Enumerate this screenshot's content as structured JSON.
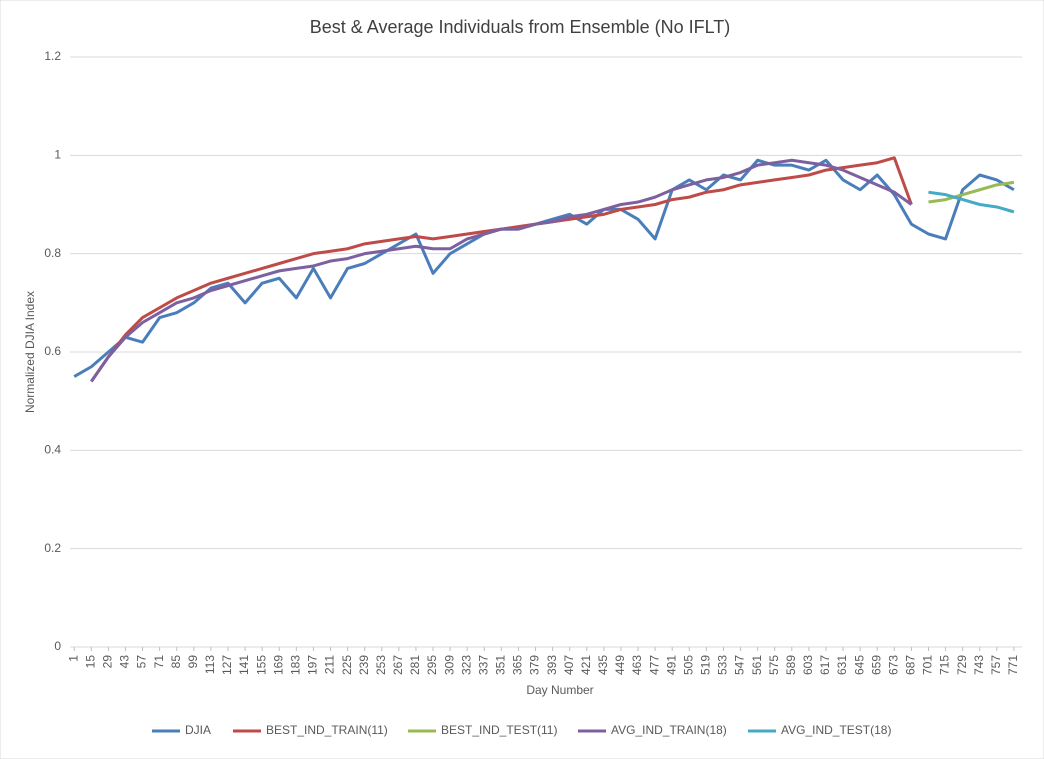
{
  "chart_data": {
    "type": "line",
    "title": "Best & Average Individuals from Ensemble (No IFLT)",
    "x_label": "Day Number",
    "y_label": "Normalized DJIA Index",
    "x": [
      1,
      15,
      29,
      43,
      57,
      71,
      85,
      99,
      113,
      127,
      141,
      155,
      169,
      183,
      197,
      211,
      225,
      239,
      253,
      267,
      281,
      295,
      309,
      323,
      337,
      351,
      365,
      379,
      393,
      407,
      421,
      435,
      449,
      463,
      477,
      491,
      505,
      519,
      533,
      547,
      561,
      575,
      589,
      603,
      617,
      631,
      645,
      659,
      673,
      687,
      701,
      715,
      729,
      743,
      757,
      771
    ],
    "xlim": [
      0,
      776
    ],
    "xticks": [
      1,
      15,
      29,
      43,
      57,
      71,
      85,
      99,
      113,
      127,
      141,
      155,
      169,
      183,
      197,
      211,
      225,
      239,
      253,
      267,
      281,
      295,
      309,
      323,
      337,
      351,
      365,
      379,
      393,
      407,
      421,
      435,
      449,
      463,
      477,
      491,
      505,
      519,
      533,
      547,
      561,
      575,
      589,
      603,
      617,
      631,
      645,
      659,
      673,
      687,
      701,
      715,
      729,
      743,
      757,
      771
    ],
    "ylim": [
      0,
      1.2
    ],
    "yticks": [
      0,
      0.2,
      0.4,
      0.6,
      0.8,
      1,
      1.2
    ],
    "grid": true,
    "legend": "bottom",
    "series": [
      {
        "name": "DJIA",
        "color": "#4a7ebb",
        "values": [
          0.55,
          0.57,
          0.6,
          0.63,
          0.62,
          0.67,
          0.68,
          0.7,
          0.73,
          0.74,
          0.7,
          0.74,
          0.75,
          0.71,
          0.77,
          0.71,
          0.77,
          0.78,
          0.8,
          0.82,
          0.84,
          0.76,
          0.8,
          0.82,
          0.84,
          0.85,
          0.85,
          0.86,
          0.87,
          0.88,
          0.86,
          0.89,
          0.89,
          0.87,
          0.83,
          0.93,
          0.95,
          0.93,
          0.96,
          0.95,
          0.99,
          0.98,
          0.98,
          0.97,
          0.99,
          0.95,
          0.93,
          0.96,
          0.92,
          0.86,
          0.84,
          0.83,
          0.93,
          0.96,
          0.95,
          0.93
        ]
      },
      {
        "name": "BEST_IND_TRAIN(11)",
        "color": "#be4b48",
        "values": [
          null,
          0.54,
          0.59,
          0.635,
          0.67,
          0.69,
          0.71,
          0.725,
          0.74,
          0.75,
          0.76,
          0.77,
          0.78,
          0.79,
          0.8,
          0.805,
          0.81,
          0.82,
          0.825,
          0.83,
          0.835,
          0.83,
          0.835,
          0.84,
          0.845,
          0.85,
          0.855,
          0.86,
          0.865,
          0.87,
          0.875,
          0.88,
          0.89,
          0.895,
          0.9,
          0.91,
          0.915,
          0.925,
          0.93,
          0.94,
          0.945,
          0.95,
          0.955,
          0.96,
          0.97,
          0.975,
          0.98,
          0.985,
          0.995,
          0.9,
          null,
          null,
          null,
          null,
          null,
          null
        ]
      },
      {
        "name": "BEST_IND_TEST(11)",
        "color": "#98b954",
        "values": [
          null,
          null,
          null,
          null,
          null,
          null,
          null,
          null,
          null,
          null,
          null,
          null,
          null,
          null,
          null,
          null,
          null,
          null,
          null,
          null,
          null,
          null,
          null,
          null,
          null,
          null,
          null,
          null,
          null,
          null,
          null,
          null,
          null,
          null,
          null,
          null,
          null,
          null,
          null,
          null,
          null,
          null,
          null,
          null,
          null,
          null,
          null,
          null,
          null,
          null,
          0.905,
          0.91,
          0.92,
          0.93,
          0.94,
          0.945
        ]
      },
      {
        "name": "AVG_IND_TRAIN(18)",
        "color": "#7d60a0",
        "values": [
          null,
          0.54,
          0.59,
          0.63,
          0.66,
          0.68,
          0.7,
          0.71,
          0.725,
          0.735,
          0.745,
          0.755,
          0.765,
          0.77,
          0.775,
          0.785,
          0.79,
          0.8,
          0.805,
          0.81,
          0.815,
          0.81,
          0.81,
          0.83,
          0.84,
          0.85,
          0.85,
          0.86,
          0.865,
          0.875,
          0.88,
          0.89,
          0.9,
          0.905,
          0.915,
          0.93,
          0.94,
          0.95,
          0.955,
          0.965,
          0.98,
          0.985,
          0.99,
          0.985,
          0.98,
          0.97,
          0.955,
          0.94,
          0.925,
          0.9,
          null,
          null,
          null,
          null,
          null,
          null
        ]
      },
      {
        "name": "AVG_IND_TEST(18)",
        "color": "#46aac5",
        "values": [
          null,
          null,
          null,
          null,
          null,
          null,
          null,
          null,
          null,
          null,
          null,
          null,
          null,
          null,
          null,
          null,
          null,
          null,
          null,
          null,
          null,
          null,
          null,
          null,
          null,
          null,
          null,
          null,
          null,
          null,
          null,
          null,
          null,
          null,
          null,
          null,
          null,
          null,
          null,
          null,
          null,
          null,
          null,
          null,
          null,
          null,
          null,
          null,
          null,
          null,
          0.925,
          0.92,
          0.91,
          0.9,
          0.895,
          0.885
        ]
      }
    ]
  }
}
